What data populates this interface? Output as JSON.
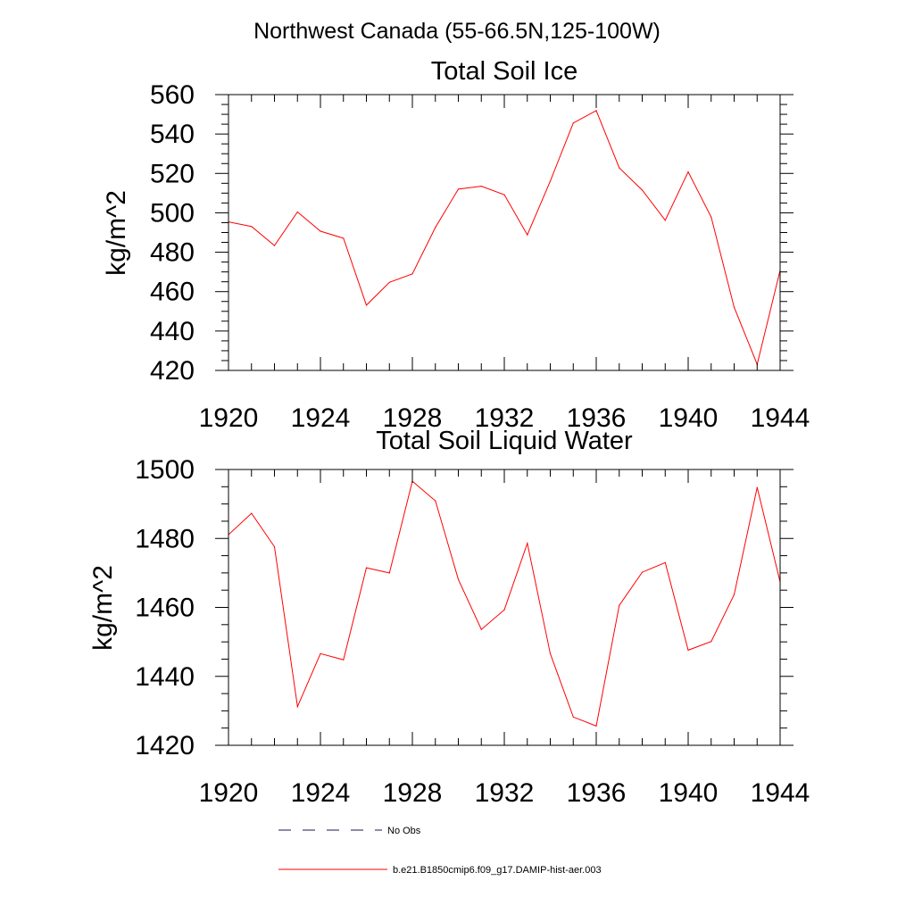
{
  "figure": {
    "title": "Northwest Canada (55-66.5N,125-100W)"
  },
  "chart_data": [
    {
      "type": "line",
      "title": "Total Soil Ice",
      "xlabel": "",
      "ylabel": "kg/m^2",
      "xlim": [
        1920,
        1944
      ],
      "ylim": [
        420,
        560
      ],
      "xticks": [
        "1920",
        "1924",
        "1928",
        "1932",
        "1936",
        "1940",
        "1944"
      ],
      "yticks": [
        "420",
        "440",
        "460",
        "480",
        "500",
        "520",
        "540",
        "560"
      ],
      "x": [
        1920,
        1921,
        1922,
        1923,
        1924,
        1925,
        1926,
        1927,
        1928,
        1929,
        1930,
        1931,
        1932,
        1933,
        1934,
        1935,
        1936,
        1937,
        1938,
        1939,
        1940,
        1941,
        1942,
        1943,
        1944
      ],
      "series": [
        {
          "name": "b.e21.B1850cmip6.f09_g17.DAMIP-hist-aer.003",
          "color": "#ff0000",
          "values": [
            495.4,
            493.1,
            483.4,
            500.4,
            490.7,
            487.1,
            453.1,
            464.7,
            469.0,
            492.6,
            512.0,
            513.5,
            509.2,
            488.8,
            516.1,
            545.6,
            551.9,
            522.8,
            511.5,
            496.2,
            520.8,
            497.8,
            452.1,
            423.1,
            470.8
          ]
        }
      ],
      "grid": false
    },
    {
      "type": "line",
      "title": "Total Soil Liquid Water",
      "xlabel": "",
      "ylabel": "kg/m^2",
      "xlim": [
        1920,
        1944
      ],
      "ylim": [
        1420,
        1500
      ],
      "xticks": [
        "1920",
        "1924",
        "1928",
        "1932",
        "1936",
        "1940",
        "1944"
      ],
      "yticks": [
        "1420",
        "1440",
        "1460",
        "1480",
        "1500"
      ],
      "x": [
        1920,
        1921,
        1922,
        1923,
        1924,
        1925,
        1926,
        1927,
        1928,
        1929,
        1930,
        1931,
        1932,
        1933,
        1934,
        1935,
        1936,
        1937,
        1938,
        1939,
        1940,
        1941,
        1942,
        1943,
        1944
      ],
      "series": [
        {
          "name": "b.e21.B1850cmip6.f09_g17.DAMIP-hist-aer.003",
          "color": "#ff0000",
          "values": [
            1481.1,
            1487.3,
            1477.6,
            1431.2,
            1446.6,
            1444.8,
            1471.5,
            1470.0,
            1496.6,
            1490.9,
            1468.1,
            1453.6,
            1459.3,
            1478.6,
            1446.6,
            1428.2,
            1425.6,
            1460.6,
            1470.2,
            1473.0,
            1447.6,
            1450.1,
            1463.7,
            1494.8,
            1467.4
          ]
        }
      ],
      "grid": false
    }
  ],
  "legend": {
    "position": "bottom",
    "items": [
      {
        "label": "No Obs",
        "style": "dashed",
        "color": "#1a1a4f"
      },
      {
        "label": "b.e21.B1850cmip6.f09_g17.DAMIP-hist-aer.003",
        "style": "solid",
        "color": "#ff0000"
      }
    ]
  }
}
